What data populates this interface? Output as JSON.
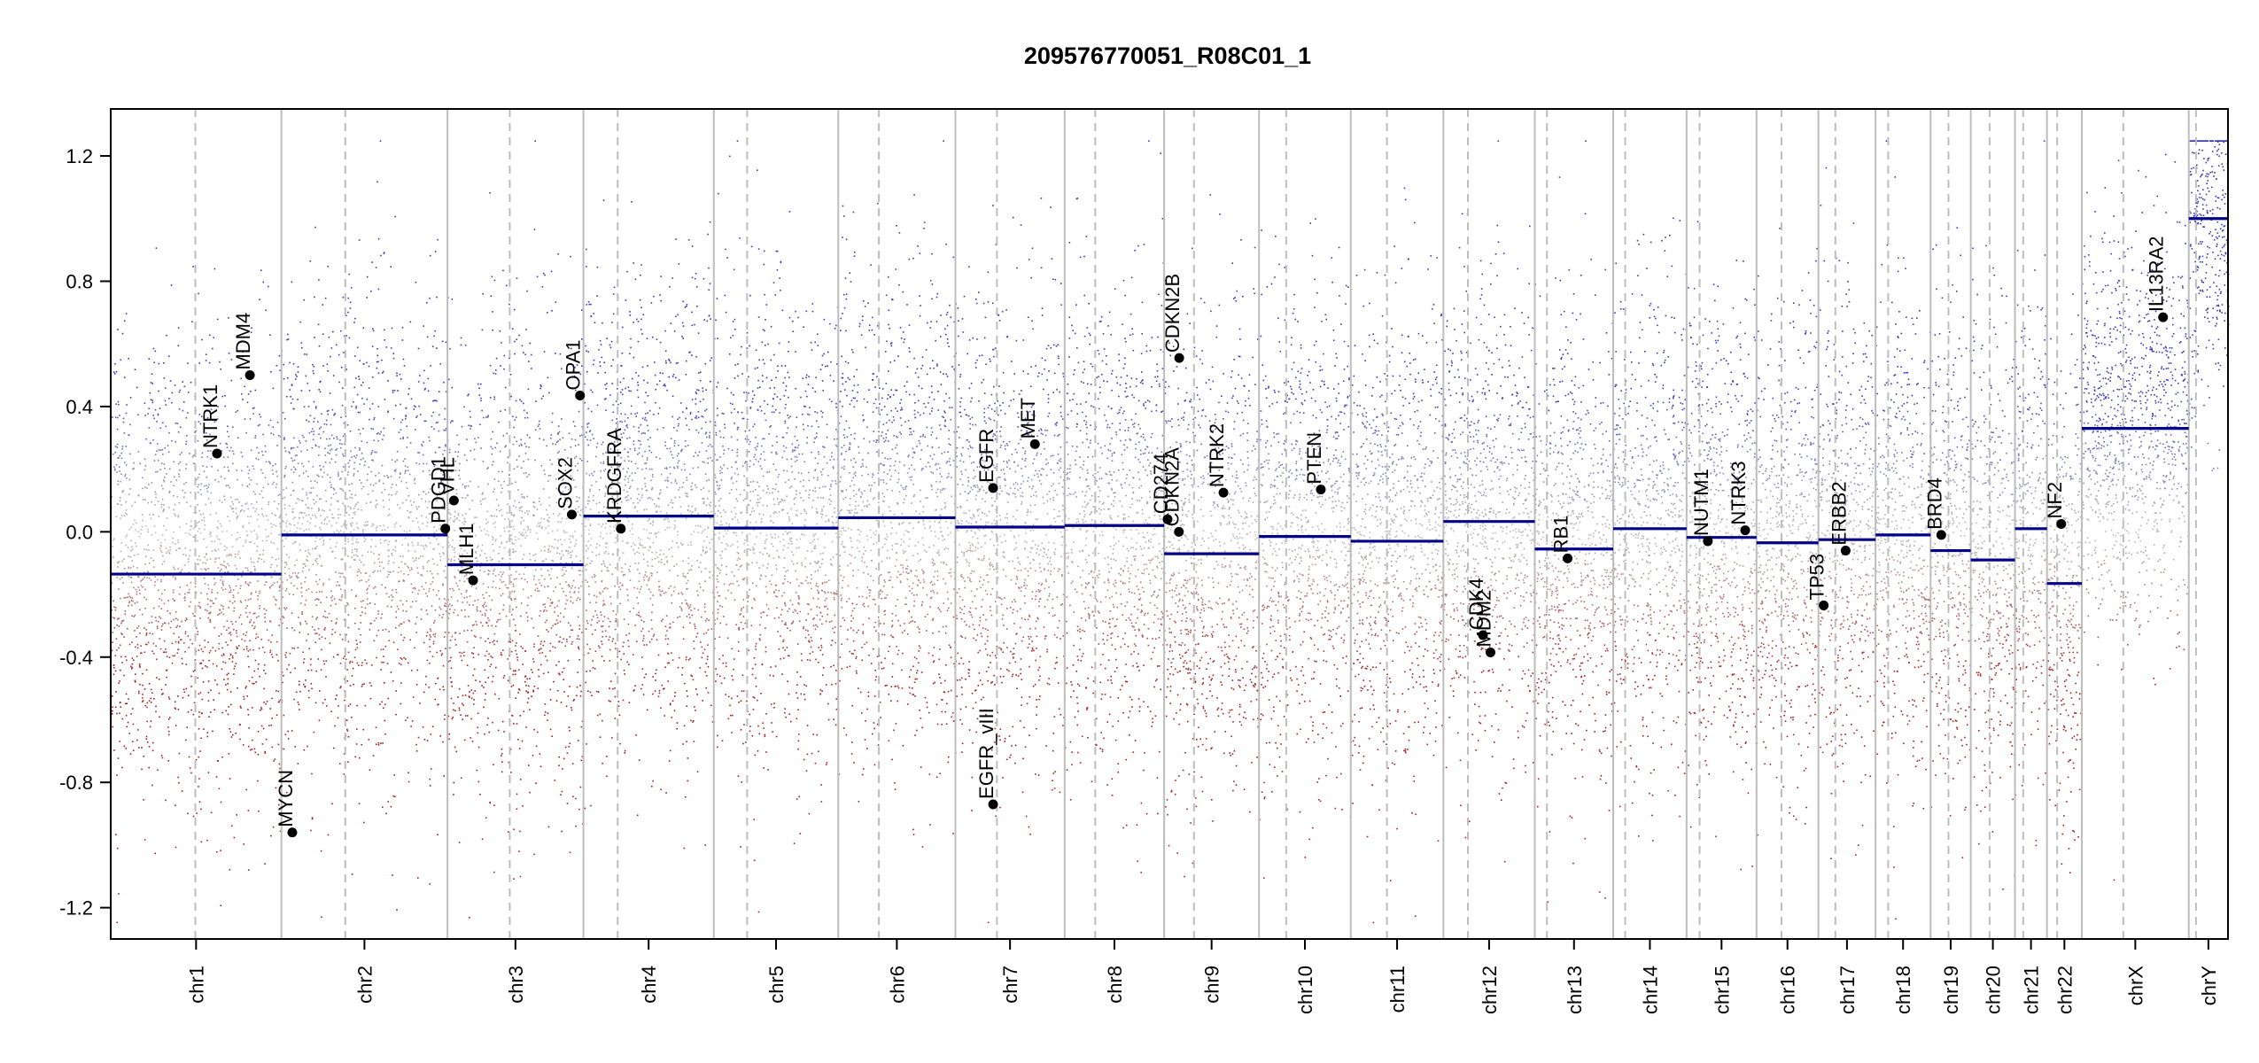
{
  "chart_data": {
    "type": "scatter",
    "title": "209576770051_R08C01_1",
    "xlabel": "",
    "ylabel": "",
    "ylim": [
      -1.3,
      1.35
    ],
    "yticks": [
      -1.2,
      -0.8,
      -0.4,
      0.0,
      0.4,
      0.8,
      1.2
    ],
    "ytick_labels": [
      "-1.2",
      "-0.8",
      "-0.4",
      "0.0",
      "0.4",
      "0.8",
      "1.2"
    ],
    "grid": false,
    "colors": {
      "gain": "#3a3ab8",
      "loss": "#a52020",
      "neutral": "#bdbdbd",
      "segment": "#00008b",
      "boundary": "#bdbdbd",
      "gene_point": "#000000"
    },
    "chromosomes": [
      {
        "name": "chr1",
        "start": 0,
        "end": 248.96,
        "centromere": 123.4,
        "segments": [
          {
            "start": 0,
            "end": 248.96,
            "value": -0.135
          }
        ]
      },
      {
        "name": "chr2",
        "start": 248.96,
        "end": 491.15,
        "centromere": 342.1,
        "segments": [
          {
            "start": 248.96,
            "end": 491.15,
            "value": -0.01
          }
        ]
      },
      {
        "name": "chr3",
        "start": 491.15,
        "end": 689.45,
        "centromere": 582.0,
        "segments": [
          {
            "start": 491.15,
            "end": 689.45,
            "value": -0.105
          }
        ]
      },
      {
        "name": "chr4",
        "start": 689.45,
        "end": 879.66,
        "centromere": 739.4,
        "segments": [
          {
            "start": 689.45,
            "end": 879.66,
            "value": 0.05
          }
        ]
      },
      {
        "name": "chr5",
        "start": 879.66,
        "end": 1061.2,
        "centromere": 928.2,
        "segments": [
          {
            "start": 879.66,
            "end": 1061.2,
            "value": 0.012
          }
        ]
      },
      {
        "name": "chr6",
        "start": 1061.2,
        "end": 1232.0,
        "centromere": 1120.4,
        "segments": [
          {
            "start": 1061.2,
            "end": 1232.0,
            "value": 0.045
          }
        ]
      },
      {
        "name": "chr7",
        "start": 1232.0,
        "end": 1391.4,
        "centromere": 1292.6,
        "segments": [
          {
            "start": 1232.0,
            "end": 1391.4,
            "value": 0.015
          }
        ]
      },
      {
        "name": "chr8",
        "start": 1391.4,
        "end": 1536.5,
        "centromere": 1436.0,
        "segments": [
          {
            "start": 1391.4,
            "end": 1536.5,
            "value": 0.02
          }
        ]
      },
      {
        "name": "chr9",
        "start": 1536.5,
        "end": 1674.9,
        "centromere": 1580.0,
        "segments": [
          {
            "start": 1536.5,
            "end": 1674.9,
            "value": -0.07
          }
        ]
      },
      {
        "name": "chr10",
        "start": 1674.9,
        "end": 1808.7,
        "centromere": 1714.5,
        "segments": [
          {
            "start": 1674.9,
            "end": 1808.7,
            "value": -0.015
          }
        ]
      },
      {
        "name": "chr11",
        "start": 1808.7,
        "end": 1943.8,
        "centromere": 1861.5,
        "segments": [
          {
            "start": 1808.7,
            "end": 1943.8,
            "value": -0.03
          }
        ]
      },
      {
        "name": "chr12",
        "start": 1943.8,
        "end": 2077.1,
        "centromere": 1979.5,
        "segments": [
          {
            "start": 1943.8,
            "end": 2077.1,
            "value": 0.033
          }
        ]
      },
      {
        "name": "chr13",
        "start": 2077.1,
        "end": 2191.5,
        "centromere": 2094.8,
        "segments": [
          {
            "start": 2077.1,
            "end": 2191.5,
            "value": -0.055
          }
        ]
      },
      {
        "name": "chr14",
        "start": 2191.5,
        "end": 2298.5,
        "centromere": 2209.0,
        "segments": [
          {
            "start": 2191.5,
            "end": 2298.5,
            "value": 0.01
          }
        ]
      },
      {
        "name": "chr15",
        "start": 2298.5,
        "end": 2400.5,
        "centromere": 2317.5,
        "segments": [
          {
            "start": 2298.5,
            "end": 2400.5,
            "value": -0.018
          }
        ]
      },
      {
        "name": "chr16",
        "start": 2400.5,
        "end": 2490.8,
        "centromere": 2437.0,
        "segments": [
          {
            "start": 2400.5,
            "end": 2490.8,
            "value": -0.035
          }
        ]
      },
      {
        "name": "chr17",
        "start": 2490.8,
        "end": 2574.1,
        "centromere": 2515.5,
        "segments": [
          {
            "start": 2490.8,
            "end": 2574.1,
            "value": -0.025
          }
        ]
      },
      {
        "name": "chr18",
        "start": 2574.1,
        "end": 2654.4,
        "centromere": 2592.5,
        "segments": [
          {
            "start": 2574.1,
            "end": 2654.4,
            "value": -0.01
          }
        ]
      },
      {
        "name": "chr19",
        "start": 2654.4,
        "end": 2713.0,
        "centromere": 2680.5,
        "segments": [
          {
            "start": 2654.4,
            "end": 2713.0,
            "value": -0.06
          }
        ]
      },
      {
        "name": "chr20",
        "start": 2713.0,
        "end": 2777.5,
        "centromere": 2740.5,
        "segments": [
          {
            "start": 2713.0,
            "end": 2777.5,
            "value": -0.09
          }
        ]
      },
      {
        "name": "chr21",
        "start": 2777.5,
        "end": 2824.2,
        "centromere": 2789.5,
        "segments": [
          {
            "start": 2777.5,
            "end": 2824.2,
            "value": 0.01
          }
        ]
      },
      {
        "name": "chr22",
        "start": 2824.2,
        "end": 2875.0,
        "centromere": 2839.0,
        "segments": [
          {
            "start": 2824.2,
            "end": 2875.0,
            "value": -0.165
          }
        ]
      },
      {
        "name": "chrX",
        "start": 2875.0,
        "end": 3031.0,
        "centromere": 2935.5,
        "segments": [
          {
            "start": 2875.0,
            "end": 3031.0,
            "value": 0.33
          }
        ]
      },
      {
        "name": "chrY",
        "start": 3031.0,
        "end": 3088.2,
        "centromere": 3041.5,
        "segments": [
          {
            "start": 3031.0,
            "end": 3088.2,
            "value": 1.0
          }
        ]
      }
    ],
    "genes": [
      {
        "name": "NTRK1",
        "pos": 155.0,
        "value": 0.25
      },
      {
        "name": "MDM4",
        "pos": 203.0,
        "value": 0.5
      },
      {
        "name": "MYCN",
        "pos": 264.8,
        "value": -0.96
      },
      {
        "name": "PDGD1",
        "pos": 488.0,
        "value": 0.01
      },
      {
        "name": "VHL",
        "pos": 500.5,
        "value": 0.1
      },
      {
        "name": "MLH1",
        "pos": 528.5,
        "value": -0.155
      },
      {
        "name": "SOX2",
        "pos": 672.5,
        "value": 0.055
      },
      {
        "name": "OPA1",
        "pos": 684.5,
        "value": 0.435
      },
      {
        "name": "KRDGFRA",
        "pos": 744.0,
        "value": 0.01
      },
      {
        "name": "EGFR",
        "pos": 1287.0,
        "value": 0.14
      },
      {
        "name": "EGFR_vIII",
        "pos": 1287.0,
        "value": -0.87
      },
      {
        "name": "MET",
        "pos": 1348.0,
        "value": 0.28
      },
      {
        "name": "CD274",
        "pos": 1541.5,
        "value": 0.04
      },
      {
        "name": "CDKN2A",
        "pos": 1558.0,
        "value": 0.0
      },
      {
        "name": "CDKN2B",
        "pos": 1558.5,
        "value": 0.555
      },
      {
        "name": "NTRK2",
        "pos": 1623.0,
        "value": 0.125
      },
      {
        "name": "PTEN",
        "pos": 1765.0,
        "value": 0.135
      },
      {
        "name": "CDK4",
        "pos": 2001.5,
        "value": -0.33
      },
      {
        "name": "MDM2",
        "pos": 2012.5,
        "value": -0.385
      },
      {
        "name": "RB1",
        "pos": 2125.0,
        "value": -0.085
      },
      {
        "name": "NUTM1",
        "pos": 2329.5,
        "value": -0.03
      },
      {
        "name": "NTRK3",
        "pos": 2384.0,
        "value": 0.005
      },
      {
        "name": "TP53",
        "pos": 2498.5,
        "value": -0.235
      },
      {
        "name": "ERBB2",
        "pos": 2530.5,
        "value": -0.06
      },
      {
        "name": "BRD4",
        "pos": 2670.0,
        "value": -0.01
      },
      {
        "name": "NF2",
        "pos": 2845.0,
        "value": 0.025
      },
      {
        "name": "IL13RA2",
        "pos": 2993.5,
        "value": 0.685
      }
    ]
  }
}
